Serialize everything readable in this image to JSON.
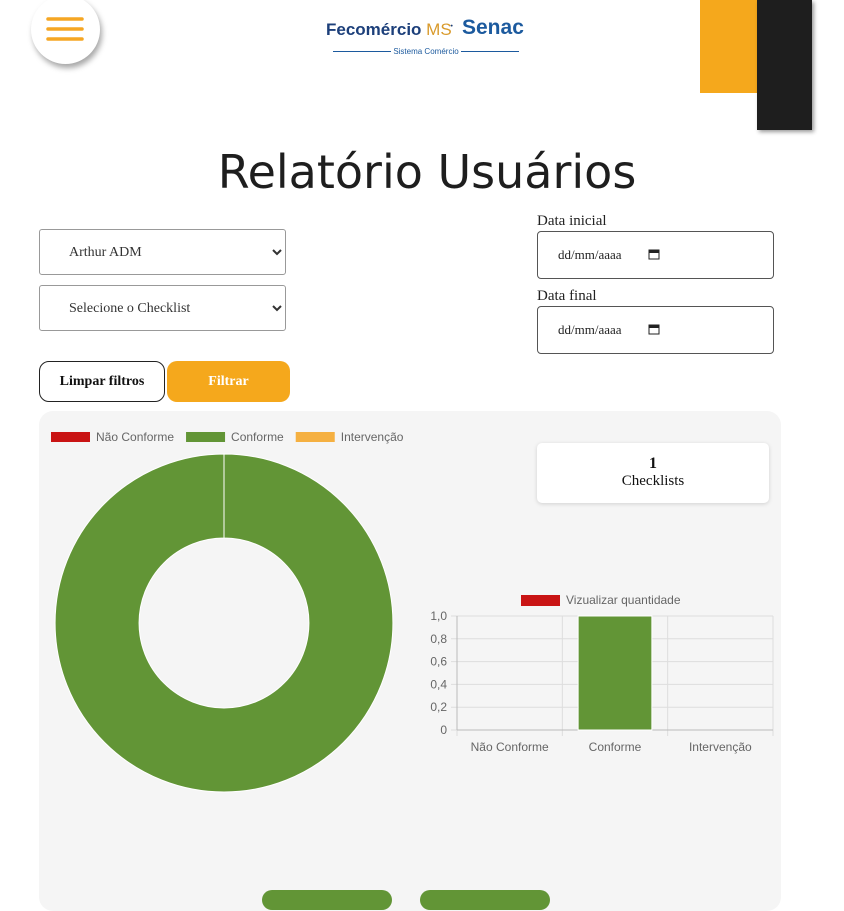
{
  "header": {
    "logo_left": "Fecomércio",
    "logo_ms": "MS",
    "logo_right": "Senac",
    "logo_sub": "Sistema Comércio"
  },
  "title": "Relatório Usuários",
  "filters": {
    "user": "Arthur ADM",
    "checklist": "Selecione o Checklist",
    "start_label": "Data inicial",
    "start_placeholder": "dd/mm/aaaa",
    "end_label": "Data final",
    "end_placeholder": "dd/mm/aaaa"
  },
  "buttons": {
    "clear": "Limpar filtros",
    "filter": "Filtrar"
  },
  "summary": {
    "count": 1,
    "label": "Checklists"
  },
  "chart_data": [
    {
      "type": "donut",
      "categories": [
        "Não Conforme",
        "Conforme",
        "Intervenção"
      ],
      "values": [
        0,
        1,
        0
      ],
      "colors": [
        "#c91414",
        "#629536",
        "#f5b041"
      ]
    },
    {
      "type": "bar",
      "categories": [
        "Não Conforme",
        "Conforme",
        "Intervenção"
      ],
      "series": [
        {
          "name": "Vizualizar quantidade",
          "color": "#c91414",
          "values": [
            0,
            1,
            0
          ]
        }
      ],
      "bar_colors": [
        "#c91414",
        "#629536",
        "#f5b041"
      ],
      "ylim": [
        0,
        1
      ],
      "yticks": [
        0,
        {
          "value": 0.2,
          "label": "0,2"
        },
        {
          "value": 0.4,
          "label": "0,4"
        },
        {
          "value": 0.6,
          "label": "0,6"
        },
        {
          "value": 0.8,
          "label": "0,8"
        },
        {
          "value": 1,
          "label": "1,0"
        }
      ],
      "grid": true
    }
  ]
}
